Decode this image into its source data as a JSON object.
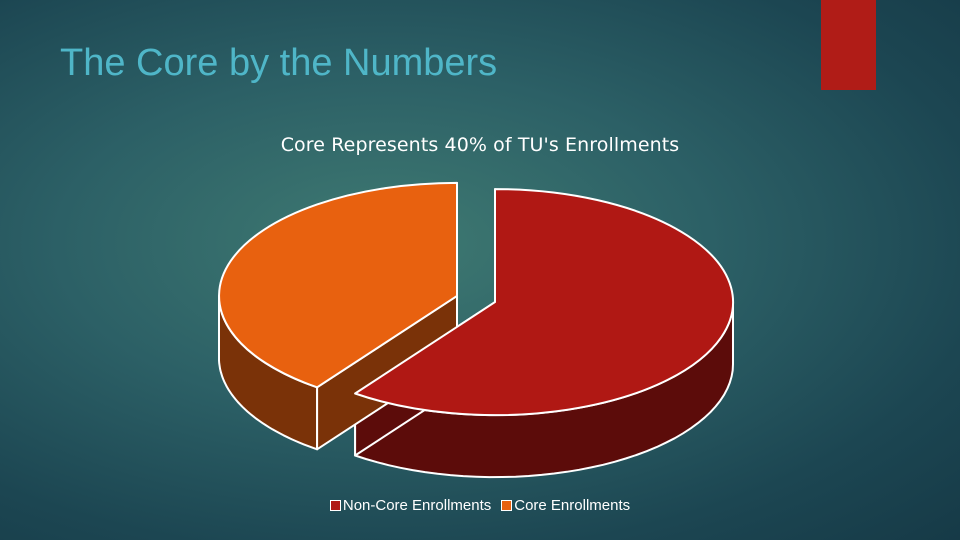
{
  "slide": {
    "title": "The Core by the Numbers"
  },
  "colors": {
    "accent_bar": "#b01c17",
    "title": "#4fb6c8"
  },
  "chart_data": {
    "type": "pie",
    "style": "3d-exploded",
    "title": "Core Represents 40% of TU's Enrollments",
    "legend_position": "bottom",
    "series": [
      {
        "name": "",
        "values": [
          60,
          40
        ]
      }
    ],
    "categories": [
      "Non-Core Enrollments",
      "Core Enrollments"
    ],
    "slices": [
      {
        "label": "Non-Core Enrollments",
        "value": 60,
        "color": "#b01814",
        "side_color": "#5c0c0a"
      },
      {
        "label": "Core Enrollments",
        "value": 40,
        "color": "#e8610f",
        "side_color": "#7a3208"
      }
    ]
  }
}
